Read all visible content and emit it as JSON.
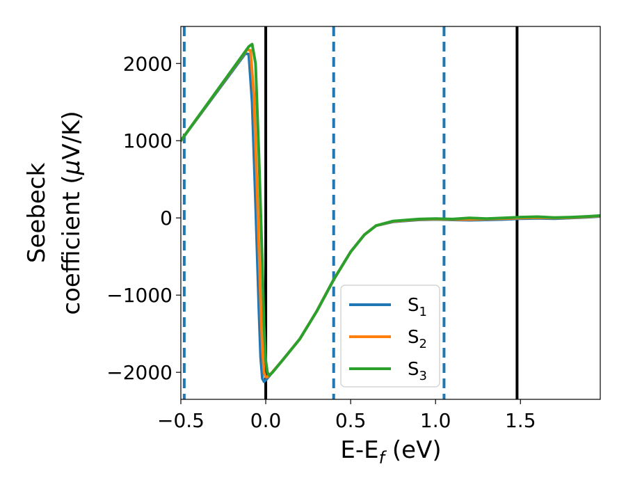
{
  "chart_data": {
    "type": "line",
    "xlabel_main": "E-E",
    "xlabel_sub": "f",
    "xlabel_unit": " (eV)",
    "ylabel_line1": "Seebeck",
    "ylabel_line2_prefix": "coefficient  (",
    "ylabel_mu": "μ",
    "ylabel_line2_suffix": "V/K)",
    "xlim": [
      -0.5,
      1.97
    ],
    "ylim": [
      -2350,
      2480
    ],
    "xticks": [
      -0.5,
      0.0,
      0.5,
      1.0,
      1.5
    ],
    "xtick_labels": [
      "−0.5",
      "0.0",
      "0.5",
      "1.0",
      "1.5"
    ],
    "yticks": [
      -2000,
      -1000,
      0,
      1000,
      2000
    ],
    "ytick_labels": [
      "−2000",
      "−1000",
      "0",
      "1000",
      "2000"
    ],
    "vlines": [
      {
        "x": -0.48,
        "style": "dashed",
        "color": "#1f77b4"
      },
      {
        "x": 0.0,
        "style": "solid",
        "color": "#000000"
      },
      {
        "x": 0.4,
        "style": "dashed",
        "color": "#1f77b4"
      },
      {
        "x": 1.05,
        "style": "dashed",
        "color": "#1f77b4"
      },
      {
        "x": 1.48,
        "style": "solid",
        "color": "#000000"
      }
    ],
    "legend_position": "lower-center",
    "series": [
      {
        "name_base": "S",
        "name_sub": "1",
        "color": "#1f77b4",
        "points": [
          [
            -0.5,
            1000
          ],
          [
            -0.12,
            2130
          ],
          [
            -0.1,
            2120
          ],
          [
            -0.08,
            1500
          ],
          [
            -0.06,
            200
          ],
          [
            -0.04,
            -1200
          ],
          [
            -0.03,
            -1800
          ],
          [
            -0.02,
            -2080
          ],
          [
            -0.01,
            -2120
          ],
          [
            0.0,
            -2100
          ],
          [
            0.02,
            -2050
          ],
          [
            0.1,
            -1840
          ],
          [
            0.2,
            -1570
          ],
          [
            0.3,
            -1210
          ],
          [
            0.4,
            -800
          ],
          [
            0.5,
            -440
          ],
          [
            0.58,
            -220
          ],
          [
            0.65,
            -100
          ],
          [
            0.75,
            -50
          ],
          [
            0.9,
            -25
          ],
          [
            1.0,
            -20
          ],
          [
            1.1,
            -25
          ],
          [
            1.2,
            -30
          ],
          [
            1.3,
            -25
          ],
          [
            1.4,
            -20
          ],
          [
            1.5,
            -10
          ],
          [
            1.6,
            -5
          ],
          [
            1.7,
            -10
          ],
          [
            1.8,
            0
          ],
          [
            1.9,
            10
          ],
          [
            1.97,
            20
          ]
        ]
      },
      {
        "name_base": "S",
        "name_sub": "2",
        "color": "#ff7f0e",
        "points": [
          [
            -0.5,
            1000
          ],
          [
            -0.11,
            2180
          ],
          [
            -0.09,
            2170
          ],
          [
            -0.07,
            1600
          ],
          [
            -0.05,
            300
          ],
          [
            -0.03,
            -1100
          ],
          [
            -0.02,
            -1700
          ],
          [
            -0.01,
            -2000
          ],
          [
            0.0,
            -2060
          ],
          [
            0.01,
            -2060
          ],
          [
            0.03,
            -2020
          ],
          [
            0.1,
            -1840
          ],
          [
            0.2,
            -1570
          ],
          [
            0.3,
            -1210
          ],
          [
            0.4,
            -800
          ],
          [
            0.5,
            -440
          ],
          [
            0.58,
            -220
          ],
          [
            0.65,
            -100
          ],
          [
            0.75,
            -45
          ],
          [
            0.9,
            -20
          ],
          [
            1.0,
            -15
          ],
          [
            1.1,
            -20
          ],
          [
            1.2,
            -20
          ],
          [
            1.3,
            -15
          ],
          [
            1.4,
            -10
          ],
          [
            1.5,
            0
          ],
          [
            1.6,
            5
          ],
          [
            1.7,
            0
          ],
          [
            1.8,
            5
          ],
          [
            1.9,
            15
          ],
          [
            1.97,
            25
          ]
        ]
      },
      {
        "name_base": "S",
        "name_sub": "3",
        "color": "#2ca02c",
        "points": [
          [
            -0.5,
            1000
          ],
          [
            -0.1,
            2220
          ],
          [
            -0.08,
            2250
          ],
          [
            -0.06,
            2000
          ],
          [
            -0.04,
            800
          ],
          [
            -0.02,
            -600
          ],
          [
            -0.01,
            -1400
          ],
          [
            0.0,
            -1850
          ],
          [
            0.01,
            -2000
          ],
          [
            0.02,
            -2040
          ],
          [
            0.04,
            -2000
          ],
          [
            0.1,
            -1840
          ],
          [
            0.2,
            -1570
          ],
          [
            0.3,
            -1210
          ],
          [
            0.4,
            -800
          ],
          [
            0.5,
            -440
          ],
          [
            0.58,
            -220
          ],
          [
            0.65,
            -100
          ],
          [
            0.75,
            -40
          ],
          [
            0.9,
            -15
          ],
          [
            1.0,
            -10
          ],
          [
            1.1,
            -15
          ],
          [
            1.2,
            0
          ],
          [
            1.3,
            -10
          ],
          [
            1.4,
            0
          ],
          [
            1.5,
            10
          ],
          [
            1.6,
            15
          ],
          [
            1.7,
            5
          ],
          [
            1.8,
            10
          ],
          [
            1.9,
            20
          ],
          [
            1.97,
            30
          ]
        ]
      }
    ]
  }
}
